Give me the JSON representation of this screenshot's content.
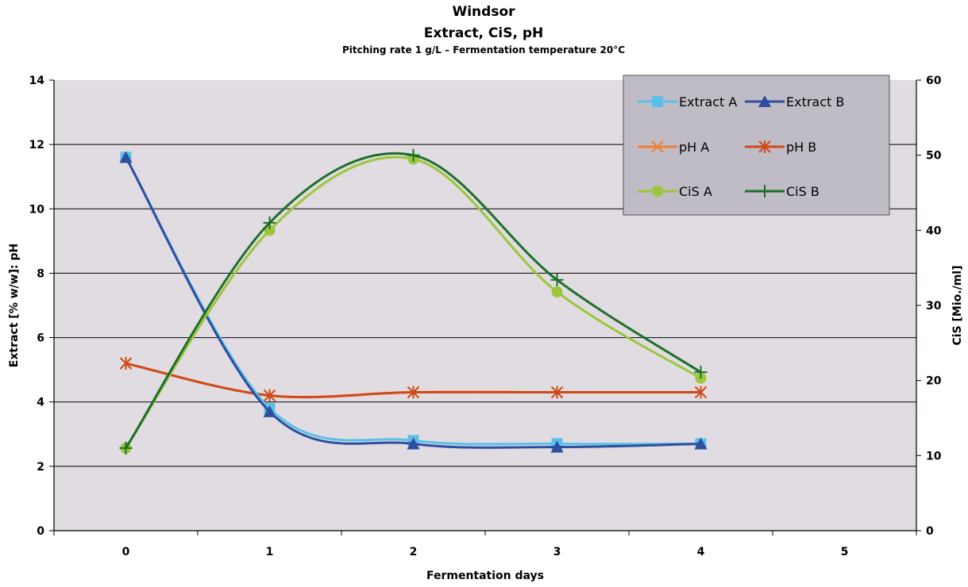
{
  "chart_data": {
    "type": "line",
    "title": "Windsor",
    "subtitle": "Extract, CiS, pH",
    "note": "Pitching rate 1 g/L – Fermentation temperature 20°C",
    "xlabel": "Fermentation days",
    "ylabel": "Extract [% w/w]: pH",
    "y2label": "CiS [Mio./ml]",
    "xlim": [
      -0.5,
      5.5
    ],
    "ylim": [
      0,
      14
    ],
    "y2lim": [
      0,
      60
    ],
    "x_ticks": [
      "0",
      "1",
      "2",
      "3",
      "4",
      "5"
    ],
    "y_ticks": [
      "0",
      "2",
      "4",
      "6",
      "8",
      "10",
      "12",
      "14"
    ],
    "y2_ticks": [
      "0",
      "10",
      "20",
      "30",
      "40",
      "50",
      "60"
    ],
    "grid": true,
    "legend_position": "top-right",
    "series": [
      {
        "name": "Extract A",
        "axis": "left",
        "color": "#5bc0e8",
        "marker": "square",
        "x": [
          0,
          1,
          2,
          3,
          4
        ],
        "values": [
          11.6,
          3.8,
          2.8,
          2.7,
          2.7
        ]
      },
      {
        "name": "Extract B",
        "axis": "left",
        "color": "#2e4f9e",
        "marker": "triangle",
        "x": [
          0,
          1,
          2,
          3,
          4
        ],
        "values": [
          11.6,
          3.7,
          2.7,
          2.6,
          2.7
        ]
      },
      {
        "name": "pH A",
        "axis": "left",
        "color": "#f08030",
        "marker": "x",
        "x": [
          0,
          1,
          2,
          3,
          4
        ],
        "values": [
          5.2,
          4.2,
          4.3,
          4.3,
          4.3
        ]
      },
      {
        "name": "pH B",
        "axis": "left",
        "color": "#d04a16",
        "marker": "star",
        "x": [
          0,
          1,
          2,
          3,
          4
        ],
        "values": [
          5.2,
          4.2,
          4.3,
          4.3,
          4.3
        ]
      },
      {
        "name": "CiS A",
        "axis": "right",
        "color": "#9cc63c",
        "marker": "circle",
        "x": [
          0,
          1,
          2,
          3,
          4
        ],
        "values": [
          11,
          40,
          49.5,
          31.8,
          20.3
        ]
      },
      {
        "name": "CiS B",
        "axis": "right",
        "color": "#1e6e2a",
        "marker": "plus",
        "x": [
          0,
          1,
          2,
          3,
          4
        ],
        "values": [
          11,
          41,
          50,
          33.4,
          21.1
        ]
      }
    ]
  }
}
